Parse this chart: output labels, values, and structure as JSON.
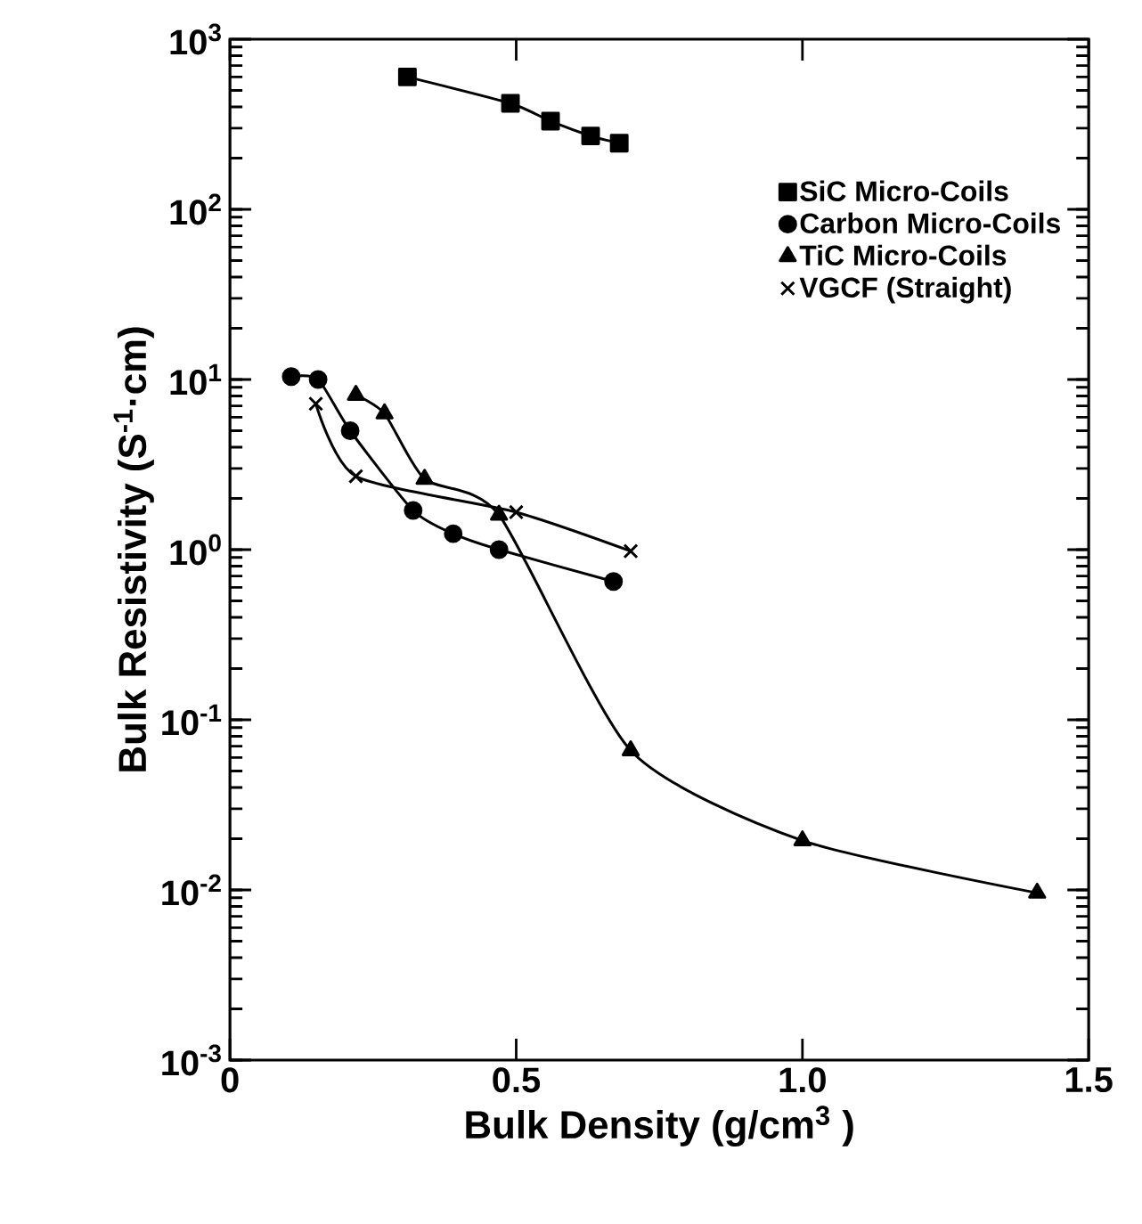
{
  "chart_data": {
    "type": "line",
    "xlabel": "Bulk Density (g/cm$^{3}$ )",
    "ylabel": "Bulk Resistivity (S$^{-1}$·cm)",
    "log": "y",
    "xlim": [
      0,
      1.5
    ],
    "ylim": [
      0.001,
      1000
    ],
    "xticks": [
      0,
      {
        "value": 0.5,
        "label": "0.5"
      },
      {
        "value": 1,
        "label": "1.0"
      },
      {
        "value": 1.5,
        "label": "1.5"
      }
    ],
    "yticks": [
      {
        "value": 0.001,
        "label": "10$^{-3}$"
      },
      {
        "value": 0.01,
        "label": "10$^{-2}$"
      },
      {
        "value": 0.1,
        "label": "10$^{-1}$"
      },
      {
        "value": 1,
        "label": "10$^{0}$"
      },
      {
        "value": 10,
        "label": "10$^{1}$"
      },
      {
        "value": 100,
        "label": "10$^{2}$"
      },
      {
        "value": 1000,
        "label": "10$^{3}$"
      }
    ],
    "grid": false,
    "legend": "top right",
    "line_style": "solid",
    "series": [
      {
        "name": "SiC Micro-Coils",
        "color": "#000000",
        "marker": "square",
        "x": [
          0.31,
          0.49,
          0.56,
          0.63,
          0.68
        ],
        "values": [
          600,
          420,
          330,
          270,
          245
        ]
      },
      {
        "name": "Carbon Micro-Coils",
        "color": "#000000",
        "marker": "circle",
        "x": [
          0.107,
          0.154,
          0.21,
          0.32,
          0.39,
          0.47,
          0.67
        ],
        "values": [
          10.4,
          10,
          5,
          1.7,
          1.24,
          1,
          0.65
        ]
      },
      {
        "name": "TiC Micro-Coils",
        "color": "#000000",
        "marker": "triangle",
        "x": [
          0.22,
          0.27,
          0.34,
          0.47,
          0.7,
          1.0,
          1.41
        ],
        "values": [
          8.1,
          6.3,
          2.6,
          1.6,
          0.066,
          0.0195,
          0.0096
        ]
      },
      {
        "name": "VGCF (Straight)",
        "color": "#000000",
        "marker": "cross",
        "x": [
          0.15,
          0.22,
          0.5,
          0.7
        ],
        "values": [
          7.2,
          2.7,
          1.66,
          0.98
        ]
      }
    ]
  }
}
